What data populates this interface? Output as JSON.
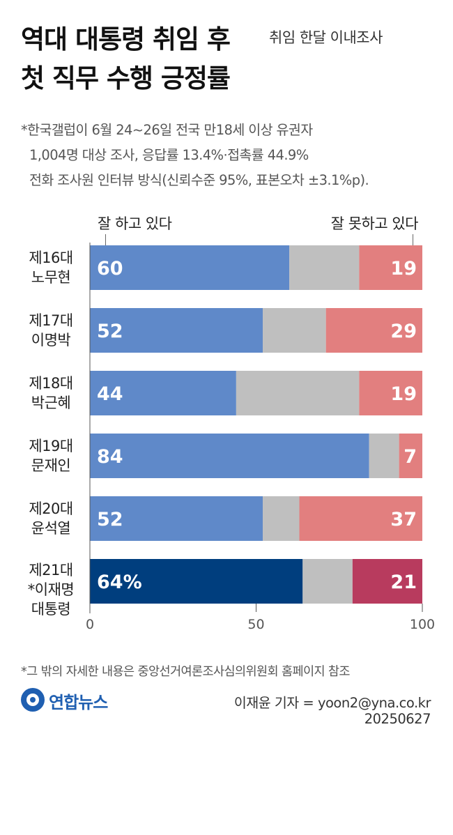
{
  "header": {
    "title_line1": "역대 대통령 취임 후",
    "title_line2": "첫 직무 수행 긍정률",
    "subtitle": "취임 한달 이내조사"
  },
  "notes": [
    "*한국갤럽이 6월 24~26일 전국 만18세 이상 유권자",
    "1,004명 대상 조사, 응답률 13.4%·접촉률 44.9%",
    "전화 조사원 인터뷰 방식(신뢰수준 95%, 표본오차 ±3.1%p)."
  ],
  "legend": {
    "positive": "잘 하고 있다",
    "negative": "잘 못하고 있다"
  },
  "chart_data": {
    "type": "bar",
    "orientation": "horizontal",
    "stacked": true,
    "categories": [
      [
        "제16대",
        "노무현"
      ],
      [
        "제17대",
        "이명박"
      ],
      [
        "제18대",
        "박근혜"
      ],
      [
        "제19대",
        "문재인"
      ],
      [
        "제20대",
        "윤석열"
      ],
      [
        "제21대",
        "*이재명",
        "대통령"
      ]
    ],
    "series": [
      {
        "name": "잘 하고 있다",
        "values": [
          60,
          52,
          44,
          84,
          52,
          64
        ],
        "labels": [
          "60",
          "52",
          "44",
          "84",
          "52",
          "64%"
        ]
      },
      {
        "values": [
          21,
          19,
          37,
          9,
          11,
          15
        ]
      },
      {
        "name": "잘 못하고 있다",
        "values": [
          19,
          29,
          19,
          7,
          37,
          21
        ],
        "labels": [
          "19",
          "29",
          "19",
          "7",
          "37",
          "21"
        ]
      }
    ],
    "xlim": [
      0,
      100
    ],
    "xticks": [
      0,
      50,
      100
    ],
    "colors": {
      "positive": "#5f89c9",
      "middle": "#bfbfbf",
      "negative": "#e27f7f",
      "positive_highlight": "#003e7e",
      "middle_highlight": "#bfbfbf",
      "negative_highlight": "#b83b5e"
    },
    "highlight_index": 5
  },
  "footer": {
    "source": "*그 밖의 자세한 내용은 중앙선거여론조사심의위원회 홈페이지 참조",
    "logo": "연합뉴스",
    "byline": "이재윤 기자 = yoon2@yna.co.kr",
    "date": "20250627"
  }
}
